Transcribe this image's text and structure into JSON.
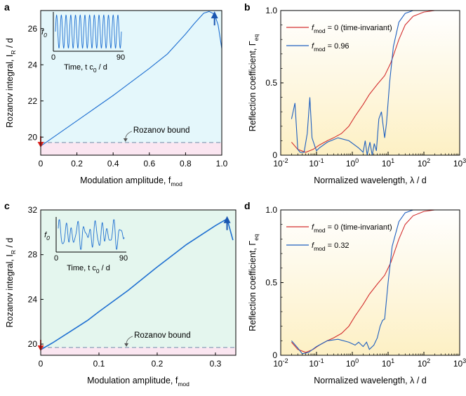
{
  "chart_data": [
    {
      "panel": "a",
      "type": "line",
      "xlabel": "Modulation amplitude, f",
      "xlabel_sub": "mod",
      "ylabel": "Rozanov integral, I",
      "ylabel_sub": "R",
      "ylabel_suffix": " / d",
      "xlim": [
        0,
        1
      ],
      "ylim": [
        19,
        27
      ],
      "xticks": [
        0,
        0.2,
        0.4,
        0.6,
        0.8,
        1.0
      ],
      "xticklabels": [
        "0",
        "0.2",
        "0.4",
        "0.6",
        "0.8",
        "1.0"
      ],
      "yticks": [
        20,
        22,
        24,
        26
      ],
      "yticklabels": [
        "20",
        "22",
        "24",
        "26"
      ],
      "bound": 19.7,
      "bound_label": "Rozanov bound",
      "series": [
        {
          "name": "Rozanov integral",
          "x": [
            0,
            0.05,
            0.1,
            0.2,
            0.3,
            0.4,
            0.5,
            0.6,
            0.7,
            0.8,
            0.85,
            0.9,
            0.93,
            0.96,
            0.98,
            1.0
          ],
          "y": [
            19.5,
            19.85,
            20.2,
            20.9,
            21.6,
            22.3,
            23.05,
            23.8,
            24.6,
            25.7,
            26.3,
            26.85,
            26.95,
            26.8,
            26.2,
            24.9
          ]
        }
      ],
      "markers": {
        "red_arrow_x": 0,
        "blue_arrow_x": 0.96
      },
      "inset": {
        "ylabel": "f",
        "ylabel_sub": "0",
        "xlabel": "Time, t c",
        "xlabel_sub": "0",
        "xlabel_suffix": " / d",
        "xticklabels": [
          "0",
          "90"
        ],
        "xlim": [
          0,
          90
        ],
        "cycles": 14,
        "kind": "sinusoid"
      }
    },
    {
      "panel": "b",
      "type": "line",
      "xlabel": "Normalized wavelength,  λ / d",
      "ylabel": "Reflection coefficient, Γ",
      "ylabel_sub": "eq",
      "xscale": "log",
      "xlim": [
        0.01,
        1000
      ],
      "ylim": [
        0,
        1
      ],
      "xtick_exponents": [
        "-2",
        "-1",
        "0",
        "1",
        "2",
        "3"
      ],
      "yticks": [
        0,
        0.5,
        1.0
      ],
      "yticklabels": [
        "0",
        "0.5",
        "1.0"
      ],
      "legend": [
        {
          "label": "f",
          "sub": "mod",
          "rest": " = 0 (time-invariant)",
          "color": "#d32f2f"
        },
        {
          "label": "f",
          "sub": "mod",
          "rest": " = 0.96",
          "color": "#1e5fbf"
        }
      ],
      "series": [
        {
          "name": "fmod = 0 (time-invariant)",
          "color": "#d32f2f",
          "x": [
            0.02,
            0.03,
            0.05,
            0.08,
            0.12,
            0.2,
            0.3,
            0.5,
            0.8,
            1.2,
            2,
            3,
            5,
            8,
            12,
            20,
            30,
            50,
            100,
            200,
            1000
          ],
          "y": [
            0.09,
            0.04,
            0.02,
            0.04,
            0.07,
            0.1,
            0.12,
            0.15,
            0.2,
            0.27,
            0.35,
            0.42,
            0.49,
            0.55,
            0.64,
            0.8,
            0.9,
            0.96,
            0.99,
            1.0,
            1.0
          ]
        },
        {
          "name": "fmod = 0.96",
          "color": "#1e5fbf",
          "x": [
            0.02,
            0.025,
            0.03,
            0.035,
            0.045,
            0.055,
            0.065,
            0.075,
            0.09,
            0.1,
            0.12,
            0.2,
            0.4,
            0.8,
            1.5,
            2,
            2.3,
            2.6,
            3.1,
            3.6,
            4.1,
            4.7,
            5.5,
            6.5,
            8,
            9,
            11,
            14,
            20,
            30,
            50,
            100,
            1000
          ],
          "y": [
            0.25,
            0.36,
            0.04,
            0.02,
            0.02,
            0.15,
            0.4,
            0.12,
            0.06,
            0.03,
            0.05,
            0.09,
            0.12,
            0.1,
            0.05,
            0.02,
            0.1,
            0.0,
            0.09,
            0.0,
            0.08,
            0.03,
            0.25,
            0.3,
            0.12,
            0.22,
            0.5,
            0.75,
            0.92,
            0.98,
            1.0,
            1.0,
            1.0
          ]
        }
      ]
    },
    {
      "panel": "c",
      "type": "line",
      "xlabel": "Modulation amplitude, f",
      "xlabel_sub": "mod",
      "ylabel": "Rozanov integral, I",
      "ylabel_sub": "R",
      "ylabel_suffix": " / d",
      "xlim": [
        0,
        0.335
      ],
      "ylim": [
        19,
        32
      ],
      "xticks": [
        0,
        0.1,
        0.2,
        0.3
      ],
      "xticklabels": [
        "0",
        "0.1",
        "0.2",
        "0.3"
      ],
      "yticks": [
        20,
        24,
        28,
        32
      ],
      "yticklabels": [
        "20",
        "24",
        "28",
        "32"
      ],
      "bound": 19.7,
      "bound_label": "Rozanov bound",
      "series": [
        {
          "name": "Rozanov integral",
          "x": [
            0,
            0.02,
            0.05,
            0.08,
            0.1,
            0.15,
            0.2,
            0.25,
            0.3,
            0.32,
            0.33
          ],
          "y": [
            19.5,
            20.1,
            21.1,
            22.1,
            22.9,
            24.8,
            26.9,
            28.9,
            30.6,
            31.2,
            29.3
          ]
        }
      ],
      "markers": {
        "red_arrow_x": 0,
        "blue_arrow_x": 0.32
      },
      "inset": {
        "ylabel": "f",
        "ylabel_sub": "0",
        "xlabel": "Time, t c",
        "xlabel_sub": "0",
        "xlabel_suffix": " / d",
        "xticklabels": [
          "0",
          "90"
        ],
        "xlim": [
          0,
          90
        ],
        "kind": "irregular"
      }
    },
    {
      "panel": "d",
      "type": "line",
      "xlabel": "Normalized wavelength,  λ / d",
      "ylabel": "Reflection coefficient, Γ",
      "ylabel_sub": "eq",
      "xscale": "log",
      "xlim": [
        0.01,
        1000
      ],
      "ylim": [
        0,
        1
      ],
      "xtick_exponents": [
        "-2",
        "-1",
        "0",
        "1",
        "2",
        "3"
      ],
      "yticks": [
        0,
        0.5,
        1.0
      ],
      "yticklabels": [
        "0",
        "0.5",
        "1.0"
      ],
      "legend": [
        {
          "label": "f",
          "sub": "mod",
          "rest": " = 0 (time-invariant)",
          "color": "#d32f2f"
        },
        {
          "label": "f",
          "sub": "mod",
          "rest": " = 0.32",
          "color": "#1e5fbf"
        }
      ],
      "series": [
        {
          "name": "fmod = 0 (time-invariant)",
          "color": "#d32f2f",
          "x": [
            0.02,
            0.03,
            0.05,
            0.08,
            0.12,
            0.2,
            0.3,
            0.5,
            0.8,
            1.2,
            2,
            3,
            5,
            8,
            12,
            20,
            30,
            50,
            100,
            200,
            1000
          ],
          "y": [
            0.09,
            0.04,
            0.02,
            0.04,
            0.07,
            0.1,
            0.12,
            0.15,
            0.2,
            0.27,
            0.35,
            0.42,
            0.49,
            0.55,
            0.64,
            0.8,
            0.9,
            0.96,
            0.99,
            1.0,
            1.0
          ]
        },
        {
          "name": "fmod = 0.32",
          "color": "#1e5fbf",
          "x": [
            0.02,
            0.03,
            0.04,
            0.06,
            0.1,
            0.2,
            0.4,
            0.8,
            1.2,
            1.5,
            2,
            2.5,
            3,
            4,
            5,
            6,
            7,
            8,
            10,
            13,
            20,
            30,
            50,
            100,
            1000
          ],
          "y": [
            0.1,
            0.05,
            0.01,
            0.02,
            0.06,
            0.1,
            0.11,
            0.09,
            0.07,
            0.09,
            0.06,
            0.09,
            0.04,
            0.07,
            0.12,
            0.2,
            0.24,
            0.25,
            0.5,
            0.75,
            0.92,
            0.98,
            1.0,
            1.0,
            1.0
          ]
        }
      ]
    }
  ],
  "panel_labels": [
    "a",
    "b",
    "c",
    "d"
  ]
}
